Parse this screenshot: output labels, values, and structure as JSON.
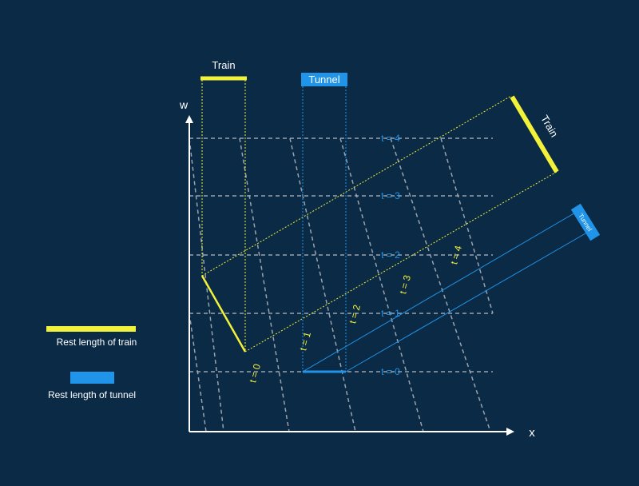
{
  "colors": {
    "background": "#0b2a45",
    "train": "#f2f23a",
    "tunnel": "#1f94e8",
    "grid": "#9aa3ad",
    "axis": "#ffffff",
    "text": "#ffffff"
  },
  "axes": {
    "x_label": "x",
    "y_label": "w"
  },
  "labels": {
    "train_top": "Train",
    "tunnel_top": "Tunnel",
    "train_moving": "Train",
    "tunnel_moving": "Tunnel"
  },
  "tunnel_time_labels": [
    "t = 0",
    "t = 1",
    "t = 2",
    "t = 3",
    "t = 4"
  ],
  "train_time_labels": [
    "t = 0",
    "t = 1",
    "t = 2",
    "t = 3",
    "t = 4"
  ],
  "legend": {
    "train": "Rest length of train",
    "tunnel": "Rest length of tunnel"
  }
}
